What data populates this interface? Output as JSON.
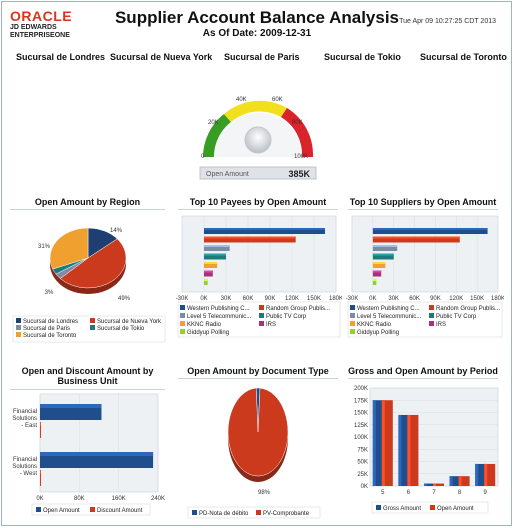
{
  "header": {
    "logo_top": "ORACLE",
    "logo_line1": "JD EDWARDS",
    "logo_line2": "ENTERPRISEONE",
    "title": "Supplier Account Balance Analysis",
    "as_of": "As Of Date: 2009-12-31",
    "timestamp": "Tue Apr 09 10:27:25 CDT 2013"
  },
  "branches": [
    "Sucursal de Londres",
    "Sucursal de Nueva York",
    "Sucursal de Paris",
    "Sucursal de Tokio",
    "Sucursal de Toronto"
  ],
  "gauge": {
    "label": "Open Amount",
    "value_text": "385K",
    "ticks": [
      "0",
      "20K",
      "40K",
      "60K",
      "80K",
      "100K"
    ],
    "colors": {
      "green": "#3a9d23",
      "yellow": "#f2e01f",
      "red": "#d8242a"
    }
  },
  "panels": {
    "region_title": "Open Amount by Region",
    "payees_title": "Top 10 Payees by Open Amount",
    "suppliers_title": "Top 10 Suppliers by Open Amount",
    "business_unit_title_1": "Open and Discount Amount by",
    "business_unit_title_2": "Business Unit",
    "document_type_title": "Open Amount by Document Type",
    "period_title": "Gross and Open Amount by Period"
  },
  "chart_data": [
    {
      "type": "pie",
      "title": "Open Amount by Region",
      "labels": [
        "Sucursal de Londres",
        "Sucursal de Nueva York",
        "Sucursal de Paris",
        "Sucursal de Tokio",
        "Sucursal de Toronto"
      ],
      "values": [
        14,
        49,
        3,
        3,
        31
      ],
      "value_labels": [
        "14%",
        "49%",
        "3%",
        "",
        "31%"
      ],
      "colors": [
        "#1f3f73",
        "#cc3a1e",
        "#7d8ca4",
        "#1f7a7a",
        "#f0a02e"
      ]
    },
    {
      "type": "bar",
      "orientation": "horizontal",
      "title": "Top 10 Payees by Open Amount",
      "categories": [
        "Western Publishing C...",
        "Random Group Publis...",
        "Level 5 Telecommunic...",
        "Public TV Corp",
        "KKNC Radio",
        "IRS",
        "Giddyup Polling"
      ],
      "values": [
        165000,
        125000,
        35000,
        30000,
        18000,
        12000,
        5000
      ],
      "colors": [
        "#1f4e8c",
        "#cc3a1e",
        "#7d8ca4",
        "#1f7a7a",
        "#f0a02e",
        "#a8327a",
        "#9acd32"
      ],
      "xticks": [
        "-30K",
        "0K",
        "30K",
        "60K",
        "90K",
        "120K",
        "150K",
        "180K"
      ],
      "xlim": [
        -30000,
        180000
      ]
    },
    {
      "type": "bar",
      "orientation": "horizontal",
      "title": "Top 10 Suppliers by Open Amount",
      "categories": [
        "Western Publishing C...",
        "Random Group Publis...",
        "Level 5 Telecommunic...",
        "Public TV Corp",
        "KKNC Radio",
        "IRS",
        "Giddyup Polling"
      ],
      "values": [
        165000,
        125000,
        35000,
        30000,
        18000,
        12000,
        5000
      ],
      "colors": [
        "#1f4e8c",
        "#cc3a1e",
        "#7d8ca4",
        "#1f7a7a",
        "#f0a02e",
        "#a8327a",
        "#9acd32"
      ],
      "xticks": [
        "-30K",
        "0K",
        "30K",
        "60K",
        "90K",
        "120K",
        "150K",
        "180K"
      ],
      "xlim": [
        -30000,
        180000
      ]
    },
    {
      "type": "bar",
      "orientation": "horizontal",
      "title": "Open and Discount Amount by Business Unit",
      "categories": [
        "Financial Solutions - East",
        "Financial Solutions - West"
      ],
      "series": [
        {
          "name": "Open Amount",
          "values": [
            125000,
            230000
          ],
          "color": "#1f4e8c"
        },
        {
          "name": "Discount Amount",
          "values": [
            2000,
            2000
          ],
          "color": "#cc3a1e"
        }
      ],
      "xticks": [
        "0K",
        "80K",
        "160K",
        "240K"
      ],
      "xlim": [
        0,
        240000
      ]
    },
    {
      "type": "pie",
      "title": "Open Amount by Document Type",
      "labels": [
        "PD-Nota de débito",
        "PV-Comprobante"
      ],
      "values": [
        2,
        98
      ],
      "value_labels": [
        "",
        "98%"
      ],
      "colors": [
        "#1f4e8c",
        "#cc3a1e"
      ]
    },
    {
      "type": "bar",
      "title": "Gross and Open Amount by Period",
      "categories": [
        "5",
        "6",
        "7",
        "8",
        "9"
      ],
      "series": [
        {
          "name": "Gross Amount",
          "values": [
            175000,
            145000,
            5000,
            20000,
            45000
          ],
          "color": "#1f4e8c"
        },
        {
          "name": "Open Amount",
          "values": [
            175000,
            145000,
            5000,
            20000,
            45000
          ],
          "color": "#cc3a1e"
        }
      ],
      "yticks": [
        "0K",
        "25K",
        "50K",
        "75K",
        "100K",
        "125K",
        "150K",
        "175K",
        "200K"
      ],
      "ylim": [
        0,
        200000
      ]
    }
  ]
}
